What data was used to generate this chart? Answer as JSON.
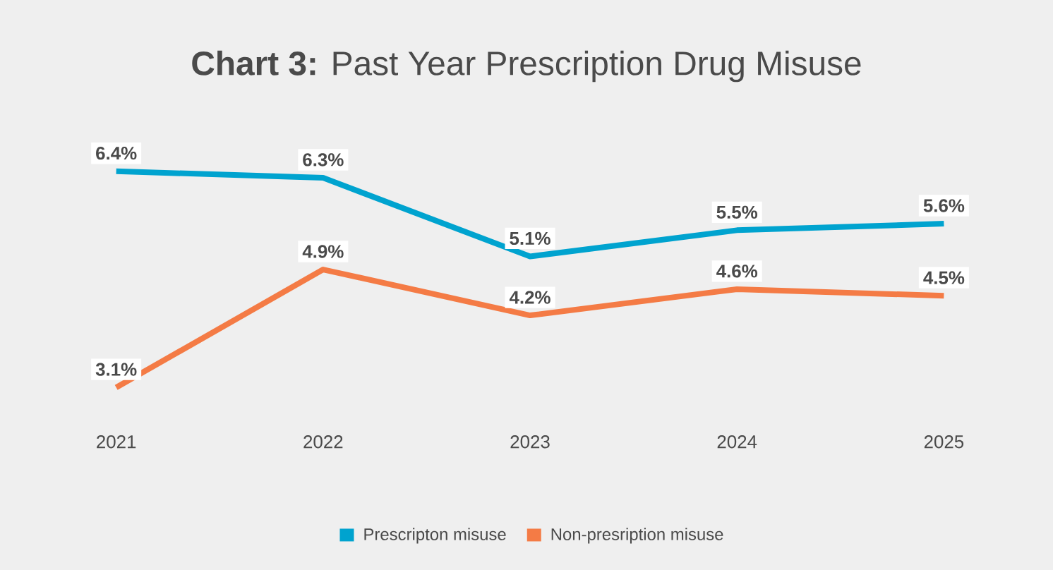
{
  "chart_data": {
    "type": "line",
    "title": "**Chart 3:** Past Year Prescription Drug Misuse",
    "categories": [
      "2021",
      "2022",
      "2023",
      "2024",
      "2025"
    ],
    "series": [
      {
        "name": "Prescripton misuse",
        "color": "#00a3cf",
        "values": [
          6.4,
          6.3,
          5.1,
          5.5,
          5.6
        ],
        "value_labels": [
          "6.4%",
          "6.3%",
          "5.1%",
          "5.5%",
          "5.6%"
        ]
      },
      {
        "name": "Non-presription misuse",
        "color": "#f47b45",
        "values": [
          3.1,
          4.9,
          4.2,
          4.6,
          4.5
        ],
        "value_labels": [
          "3.1%",
          "4.9%",
          "4.2%",
          "4.6%",
          "4.5%"
        ]
      }
    ],
    "legend": "bottom",
    "line_style": "solid"
  }
}
